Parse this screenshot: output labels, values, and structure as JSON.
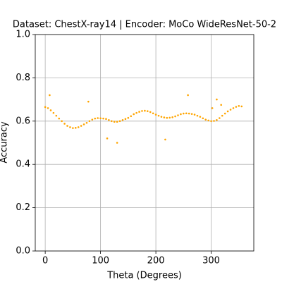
{
  "chart_data": {
    "type": "scatter",
    "title": "Dataset: ChestX-ray14 | Encoder: MoCo WideResNet-50-2",
    "xlabel": "Theta (Degrees)",
    "ylabel": "Accuracy",
    "color": "#ffa500",
    "grid": true,
    "xlim": [
      -18,
      377
    ],
    "xticks": [
      0,
      100,
      200,
      300
    ],
    "ylim": [
      0,
      1
    ],
    "yticks": [
      {
        "value": 0,
        "label": "0.0"
      },
      0.2,
      0.4,
      0.6,
      0.8,
      {
        "value": 1,
        "label": "1.0"
      }
    ],
    "x": [
      0,
      5,
      10,
      15,
      20,
      25,
      30,
      35,
      40,
      45,
      50,
      55,
      60,
      65,
      70,
      75,
      80,
      85,
      90,
      95,
      100,
      105,
      110,
      115,
      120,
      125,
      130,
      135,
      140,
      145,
      150,
      155,
      160,
      165,
      170,
      175,
      180,
      185,
      190,
      195,
      200,
      205,
      210,
      215,
      220,
      225,
      230,
      235,
      240,
      245,
      250,
      255,
      260,
      265,
      270,
      275,
      280,
      285,
      290,
      295,
      300,
      305,
      310,
      315,
      320,
      325,
      330,
      335,
      340,
      345,
      350,
      355,
      8,
      78,
      112,
      130,
      217,
      258,
      302,
      310,
      318
    ],
    "values": [
      0.665,
      0.66,
      0.65,
      0.638,
      0.625,
      0.612,
      0.6,
      0.588,
      0.578,
      0.572,
      0.568,
      0.569,
      0.572,
      0.578,
      0.585,
      0.592,
      0.6,
      0.607,
      0.612,
      0.614,
      0.613,
      0.612,
      0.61,
      0.605,
      0.6,
      0.597,
      0.597,
      0.6,
      0.605,
      0.61,
      0.615,
      0.623,
      0.632,
      0.638,
      0.643,
      0.647,
      0.648,
      0.646,
      0.642,
      0.636,
      0.63,
      0.625,
      0.62,
      0.617,
      0.615,
      0.616,
      0.618,
      0.622,
      0.627,
      0.632,
      0.635,
      0.636,
      0.635,
      0.633,
      0.63,
      0.625,
      0.62,
      0.613,
      0.607,
      0.603,
      0.6,
      0.601,
      0.605,
      0.614,
      0.625,
      0.635,
      0.645,
      0.653,
      0.66,
      0.666,
      0.67,
      0.668,
      0.72,
      0.69,
      0.52,
      0.5,
      0.515,
      0.72,
      0.66,
      0.7,
      0.675
    ]
  }
}
